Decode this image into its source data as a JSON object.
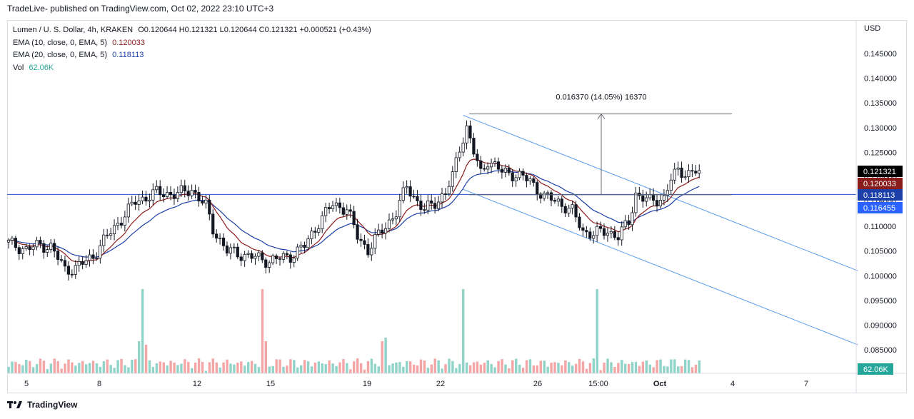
{
  "header": {
    "published": "TradeLive- published on TradingView.com, Oct 02, 2022 23:10 UTC+3"
  },
  "footer": {
    "brand": "TradingView"
  },
  "legend": {
    "symbol": "Lumen / U. S. Dollar, 4h, KRAKEN",
    "ohlc": "O0.120644  H0.121321  L0.120644  C0.121321  +0.000521 (+0.43%)",
    "ema10_label": "EMA (10, close, 0, EMA, 5)",
    "ema10_value": "0.120033",
    "ema20_label": "EMA (20, close, 0, EMA, 5)",
    "ema20_value": "0.118113",
    "vol_label": "Vol",
    "vol_value": "62.06K"
  },
  "axis": {
    "unit": "USD"
  },
  "measure": {
    "label": "0.016370 (14.05%) 16370"
  },
  "colors": {
    "up": "#26a69a",
    "down": "#ef5350",
    "candle": "#131722",
    "ema10": "#8b1c1c",
    "ema20": "#1c3fa8",
    "channel": "#5b9cf0",
    "level": "#1e53c9",
    "vol_up": "#8fd3c9",
    "vol_down": "#f4a6a6"
  },
  "chart_data": {
    "type": "candlestick",
    "y_range": [
      0.082,
      0.149
    ],
    "y_ticks": [
      "0.145000",
      "0.140000",
      "0.135000",
      "0.130000",
      "0.125000",
      "0.120000",
      "0.115000",
      "0.110000",
      "0.105000",
      "0.100000",
      "0.095000",
      "0.090000",
      "0.085000"
    ],
    "x_ticks": [
      "5",
      "8",
      "12",
      "15",
      "19",
      "22",
      "26",
      "15:00",
      "Oct",
      "4",
      "7"
    ],
    "price_tags": [
      {
        "label": "0.121321",
        "bg": "#000000"
      },
      {
        "label": "0.120033",
        "bg": "#8b1c1c"
      },
      {
        "label": "0.118113",
        "bg": "#1c3fa8"
      },
      {
        "label": "0.116455",
        "bg": "#2962ff"
      }
    ],
    "volume_tag": {
      "label": "62.06K",
      "bg": "#26a69a"
    },
    "horizontal_level": 0.116455,
    "measure": {
      "from_price": 0.1164,
      "to_price": 0.13277,
      "change": 0.01637,
      "percent": 14.05,
      "ticks": 16370
    },
    "close_series_anchors": [
      [
        0,
        0.1066
      ],
      [
        5,
        0.1053
      ],
      [
        9,
        0.1063
      ],
      [
        12,
        0.1058
      ],
      [
        16,
        0.1013
      ],
      [
        19,
        0.1015
      ],
      [
        24,
        0.104
      ],
      [
        28,
        0.108
      ],
      [
        32,
        0.1115
      ],
      [
        36,
        0.115
      ],
      [
        42,
        0.1168
      ],
      [
        48,
        0.1165
      ],
      [
        52,
        0.1175
      ],
      [
        56,
        0.114
      ],
      [
        58,
        0.1095
      ],
      [
        62,
        0.105
      ],
      [
        68,
        0.104
      ],
      [
        74,
        0.103
      ],
      [
        80,
        0.104
      ],
      [
        84,
        0.106
      ],
      [
        88,
        0.1108
      ],
      [
        92,
        0.1145
      ],
      [
        96,
        0.1135
      ],
      [
        99,
        0.108
      ],
      [
        102,
        0.1052
      ],
      [
        106,
        0.1092
      ],
      [
        110,
        0.1128
      ],
      [
        113,
        0.1182
      ],
      [
        116,
        0.115
      ],
      [
        118,
        0.1132
      ],
      [
        121,
        0.1148
      ],
      [
        124,
        0.1168
      ],
      [
        126,
        0.12
      ],
      [
        128,
        0.126
      ],
      [
        130,
        0.13
      ],
      [
        132,
        0.125
      ],
      [
        134,
        0.1206
      ],
      [
        136,
        0.1235
      ],
      [
        140,
        0.121
      ],
      [
        144,
        0.1205
      ],
      [
        148,
        0.1192
      ],
      [
        152,
        0.116
      ],
      [
        156,
        0.115
      ],
      [
        160,
        0.113
      ],
      [
        163,
        0.109
      ],
      [
        166,
        0.1085
      ],
      [
        170,
        0.109
      ],
      [
        173,
        0.108
      ],
      [
        176,
        0.1108
      ],
      [
        178,
        0.1166
      ],
      [
        182,
        0.115
      ],
      [
        186,
        0.1158
      ],
      [
        188,
        0.1195
      ],
      [
        190,
        0.1212
      ],
      [
        193,
        0.1208
      ],
      [
        196,
        0.1213
      ]
    ],
    "ema10_last": 0.120033,
    "ema20_last": 0.118113,
    "volume_spike_indices": [
      38,
      72,
      129,
      167
    ],
    "channel_upper": {
      "from": [
        129,
        0.1325
      ],
      "to": [
        241,
        0.101
      ]
    },
    "channel_lower": {
      "from": [
        129,
        0.1175
      ],
      "to": [
        241,
        0.086
      ]
    }
  }
}
